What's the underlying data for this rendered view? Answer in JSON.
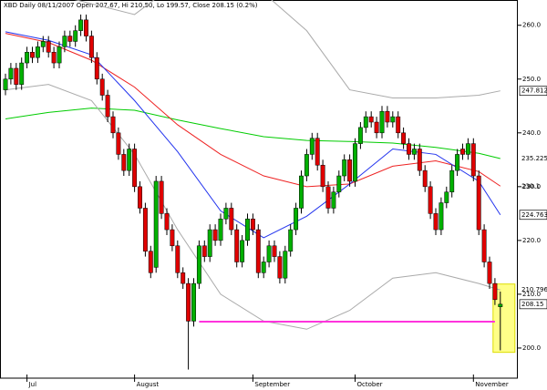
{
  "chart_data": {
    "type": "candlestick",
    "title": "XBD Daily 08/11/2007 Open 207.67, Hi 210.50, Lo 199.57, Close 208.15 (0.2%)",
    "ylim": [
      194.4,
      264.7
    ],
    "yticks": [
      {
        "value": 200,
        "label": "200.0"
      },
      {
        "value": 210,
        "label": "210.0"
      },
      {
        "value": 220,
        "label": "220.0"
      },
      {
        "value": 230,
        "label": "230.0"
      },
      {
        "value": 240,
        "label": "240.0"
      },
      {
        "value": 250,
        "label": "250.0"
      },
      {
        "value": 260,
        "label": "260.0"
      }
    ],
    "x_labels": [
      {
        "index": 4,
        "label": "Jul"
      },
      {
        "index": 24,
        "label": "August"
      },
      {
        "index": 46,
        "label": "September"
      },
      {
        "index": 65,
        "label": "October"
      },
      {
        "index": 87,
        "label": "November"
      }
    ],
    "up_color": "#00b000",
    "down_color": "#e00000",
    "open": [
      248,
      250,
      252,
      249,
      253,
      255,
      254,
      256,
      257,
      255,
      253,
      256,
      258,
      257,
      259,
      261,
      258,
      254,
      250,
      247,
      243,
      240,
      236,
      233,
      237,
      230,
      226,
      218,
      215,
      231,
      225,
      222,
      219,
      214,
      212,
      205,
      212,
      219,
      217,
      222,
      220,
      224,
      226,
      222,
      216,
      220,
      224,
      222,
      214,
      216,
      219,
      217,
      213,
      218,
      222,
      226,
      232,
      236,
      239,
      234,
      230,
      226,
      229,
      232,
      235,
      231,
      238,
      241,
      243,
      242,
      240,
      244,
      242,
      243,
      240,
      238,
      236,
      237,
      233,
      230,
      225,
      222,
      227,
      229,
      233,
      237,
      236,
      238,
      232,
      222,
      216,
      212,
      207.67
    ],
    "high": [
      251,
      253,
      253,
      254,
      256,
      256,
      257,
      258,
      258,
      256,
      257,
      259,
      259,
      260,
      262,
      262,
      259,
      255,
      251,
      248,
      244,
      241,
      237,
      238,
      238,
      231,
      227,
      219,
      232,
      232,
      226,
      223,
      220,
      215,
      213,
      213,
      220,
      220,
      223,
      223,
      225,
      227,
      227,
      223,
      221,
      225,
      225,
      223,
      217,
      220,
      220,
      218,
      219,
      223,
      227,
      233,
      237,
      240,
      240,
      235,
      231,
      230,
      233,
      236,
      236,
      239,
      242,
      244,
      244,
      243,
      245,
      245,
      244,
      244,
      241,
      239,
      238,
      238,
      234,
      231,
      226,
      228,
      230,
      234,
      237,
      238,
      239,
      239,
      233,
      223,
      217,
      213,
      210.5
    ],
    "low": [
      247,
      249,
      248,
      248,
      252,
      253,
      253,
      255,
      254,
      252,
      252,
      255,
      256,
      256,
      258,
      257,
      253,
      249,
      246,
      242,
      239,
      235,
      232,
      232,
      229,
      225,
      217,
      213,
      214,
      224,
      221,
      218,
      213,
      211,
      196,
      204,
      211,
      216,
      216,
      219,
      219,
      223,
      221,
      215,
      215,
      219,
      221,
      213,
      213,
      215,
      216,
      212,
      212,
      217,
      221,
      225,
      231,
      235,
      233,
      229,
      225,
      225,
      228,
      231,
      230,
      230,
      237,
      240,
      241,
      239,
      239,
      241,
      241,
      239,
      237,
      235,
      235,
      232,
      229,
      224,
      221,
      221,
      226,
      228,
      232,
      235,
      235,
      231,
      221,
      215,
      211,
      208,
      199.57
    ],
    "close": [
      250,
      252,
      249,
      253,
      255,
      254,
      256,
      257,
      255,
      253,
      256,
      258,
      257,
      259,
      261,
      258,
      254,
      250,
      247,
      243,
      240,
      236,
      233,
      237,
      230,
      226,
      218,
      214,
      231,
      225,
      222,
      219,
      214,
      212,
      205,
      212,
      219,
      217,
      222,
      220,
      224,
      226,
      222,
      216,
      220,
      224,
      222,
      214,
      216,
      219,
      217,
      213,
      218,
      222,
      226,
      232,
      236,
      239,
      234,
      230,
      226,
      229,
      232,
      235,
      231,
      238,
      241,
      243,
      242,
      240,
      244,
      242,
      243,
      240,
      238,
      236,
      237,
      233,
      230,
      225,
      222,
      227,
      229,
      233,
      236,
      236,
      238,
      232,
      222,
      216,
      212,
      209,
      208.15
    ],
    "overlays": [
      {
        "color": "#00cc00",
        "x": [
          0,
          8,
          16,
          24,
          32,
          40,
          48,
          56,
          64,
          72,
          80,
          88,
          92
        ],
        "values": [
          242.6,
          243.8,
          244.6,
          244.2,
          242.4,
          240.8,
          239.3,
          238.6,
          238.4,
          238.1,
          237.3,
          236.2,
          235.225
        ]
      },
      {
        "color": "#ee2222",
        "x": [
          0,
          8,
          16,
          24,
          32,
          40,
          48,
          56,
          64,
          72,
          80,
          88,
          92
        ],
        "values": [
          258.5,
          256.8,
          253.5,
          248.5,
          241.5,
          236,
          232,
          230,
          230.5,
          233.8,
          234.8,
          232.8,
          230.1
        ]
      },
      {
        "color": "#2233ee",
        "x": [
          0,
          8,
          16,
          24,
          32,
          40,
          48,
          56,
          64,
          72,
          80,
          88,
          92
        ],
        "values": [
          258.8,
          257.2,
          254.5,
          246,
          236.5,
          225.5,
          220.5,
          224.5,
          230.5,
          237,
          236,
          231,
          224.763
        ]
      },
      {
        "color": "#aaaaaa",
        "x": [
          0,
          8,
          16,
          24,
          32,
          40,
          48,
          56,
          64,
          72,
          80,
          88,
          92
        ],
        "values": [
          266,
          266,
          264,
          262,
          268,
          270,
          266,
          259,
          248,
          246.5,
          246.5,
          247,
          247.812
        ]
      },
      {
        "color": "#aaaaaa",
        "x": [
          0,
          8,
          16,
          24,
          32,
          40,
          48,
          56,
          64,
          72,
          80,
          88,
          92
        ],
        "values": [
          248,
          249,
          246,
          236,
          222,
          210,
          205,
          203.5,
          207,
          213,
          214,
          212,
          210.796
        ]
      }
    ],
    "support": {
      "value": 204.9,
      "x": [
        36,
        91
      ],
      "color": "#ff33dd"
    },
    "highlight": {
      "x": 92,
      "range": [
        199.2,
        211.9
      ],
      "color": "#ffff88"
    }
  }
}
